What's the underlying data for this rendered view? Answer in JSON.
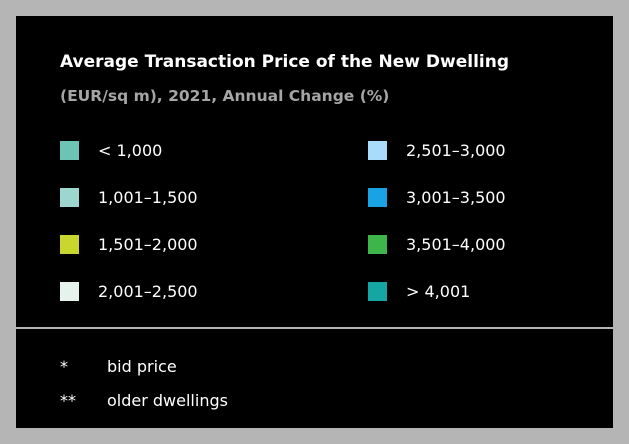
{
  "title": "Average Transaction Price of the New Dwelling",
  "subtitle": "(EUR/sq m), 2021, Annual Change (%)",
  "legend": [
    {
      "label": "< 1,000",
      "color": "#6cc5b4"
    },
    {
      "label": "1,001–1,500",
      "color": "#9dd6cf"
    },
    {
      "label": "1,501–2,000",
      "color": "#c9d62e"
    },
    {
      "label": "2,001–2,500",
      "color": "#e6f3ec"
    },
    {
      "label": "2,501–3,000",
      "color": "#a9dbfa"
    },
    {
      "label": "3,001–3,500",
      "color": "#1aa3e4"
    },
    {
      "label": "3,501–4,000",
      "color": "#3db54b"
    },
    {
      "label": "> 4,001",
      "color": "#15a6a4"
    }
  ],
  "footnotes": [
    {
      "mark": "*",
      "text": "bid price"
    },
    {
      "mark": "**",
      "text": "older dwellings"
    }
  ]
}
